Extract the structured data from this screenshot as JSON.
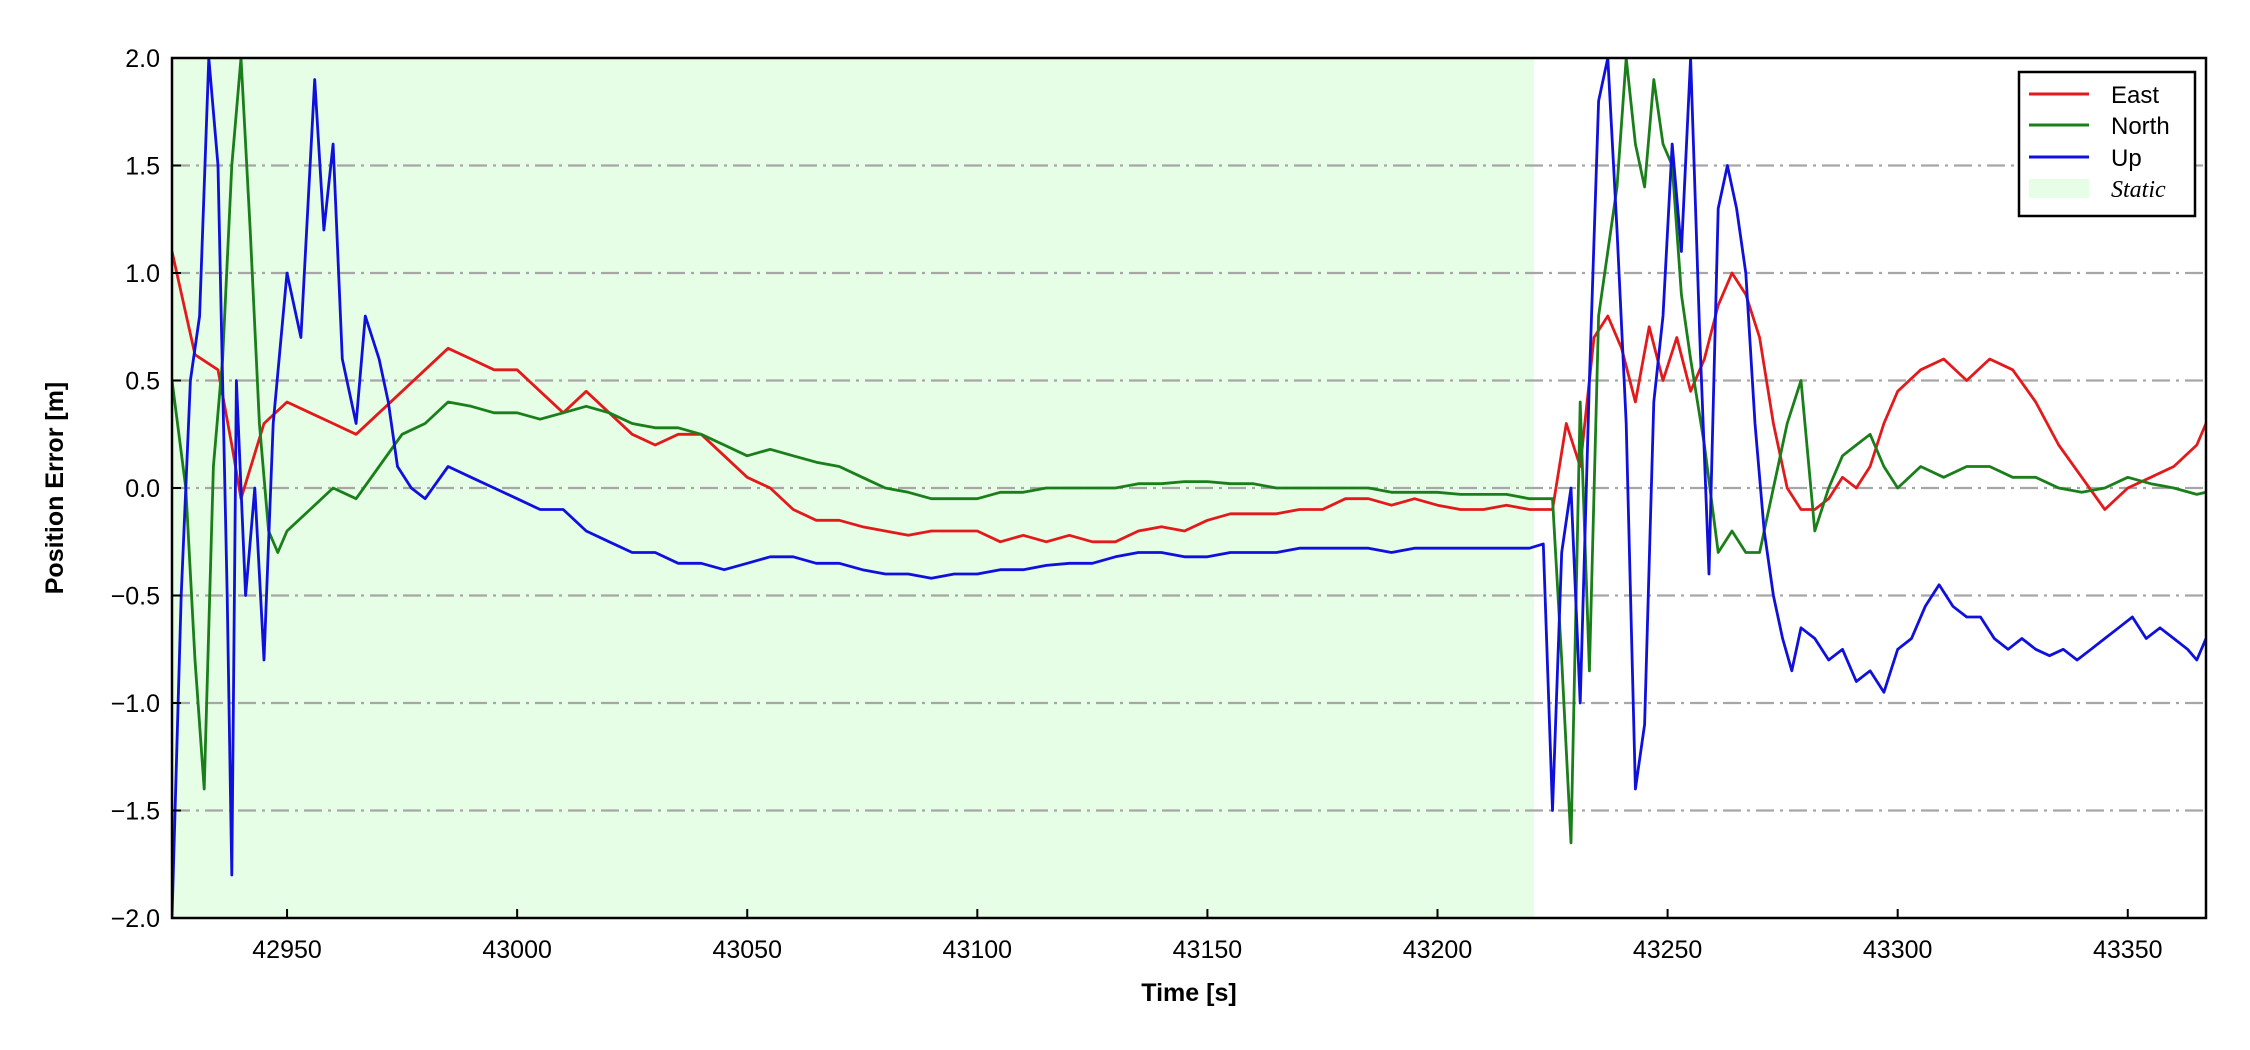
{
  "chart_data": {
    "type": "line",
    "xlabel": "Time [s]",
    "ylabel": "Position Error [m]",
    "xlim": [
      42925,
      43367
    ],
    "ylim": [
      -2.0,
      2.0
    ],
    "xticks": [
      42950,
      43000,
      43050,
      43100,
      43150,
      43200,
      43250,
      43300,
      43350
    ],
    "xtick_labels": [
      "42950",
      "43000",
      "43050",
      "43100",
      "43150",
      "43200",
      "43250",
      "43300",
      "43350"
    ],
    "yticks": [
      2.0,
      1.5,
      1.0,
      0.5,
      0.0,
      -0.5,
      -1.0,
      -1.5,
      -2.0
    ],
    "ytick_labels": [
      "2.0",
      "1.5",
      "1.0",
      "0.5",
      "0.0",
      "−0.5",
      "−1.0",
      "−1.5",
      "−2.0"
    ],
    "grid": "horizontal dash-dot",
    "legend_position": "top-right",
    "shaded_region": {
      "label": "Static",
      "x_start": 42925,
      "x_end": 43221,
      "color": "#e6fde6"
    },
    "series": [
      {
        "name": "East",
        "color": "#e31a1c",
        "x": [
          42925,
          42930,
          42935,
          42938,
          42940,
          42945,
          42950,
          42955,
          42960,
          42965,
          42970,
          42975,
          42980,
          42985,
          42990,
          42995,
          43000,
          43005,
          43010,
          43015,
          43020,
          43025,
          43030,
          43035,
          43040,
          43045,
          43050,
          43055,
          43060,
          43065,
          43070,
          43075,
          43080,
          43085,
          43090,
          43095,
          43100,
          43105,
          43110,
          43115,
          43120,
          43125,
          43130,
          43135,
          43140,
          43145,
          43150,
          43155,
          43160,
          43165,
          43170,
          43175,
          43180,
          43185,
          43190,
          43195,
          43200,
          43205,
          43210,
          43215,
          43220,
          43225,
          43228,
          43231,
          43234,
          43237,
          43240,
          43243,
          43246,
          43249,
          43252,
          43255,
          43258,
          43261,
          43264,
          43267,
          43270,
          43273,
          43276,
          43279,
          43282,
          43285,
          43288,
          43291,
          43294,
          43297,
          43300,
          43305,
          43310,
          43315,
          43320,
          43325,
          43330,
          43335,
          43340,
          43345,
          43350,
          43355,
          43360,
          43365,
          43367
        ],
        "y": [
          1.1,
          0.62,
          0.55,
          0.2,
          -0.05,
          0.3,
          0.4,
          0.35,
          0.3,
          0.25,
          0.35,
          0.45,
          0.55,
          0.65,
          0.6,
          0.55,
          0.55,
          0.45,
          0.35,
          0.45,
          0.35,
          0.25,
          0.2,
          0.25,
          0.25,
          0.15,
          0.05,
          0.0,
          -0.1,
          -0.15,
          -0.15,
          -0.18,
          -0.2,
          -0.22,
          -0.2,
          -0.2,
          -0.2,
          -0.25,
          -0.22,
          -0.25,
          -0.22,
          -0.25,
          -0.25,
          -0.2,
          -0.18,
          -0.2,
          -0.15,
          -0.12,
          -0.12,
          -0.12,
          -0.1,
          -0.1,
          -0.05,
          -0.05,
          -0.08,
          -0.05,
          -0.08,
          -0.1,
          -0.1,
          -0.08,
          -0.1,
          -0.1,
          0.3,
          0.1,
          0.7,
          0.8,
          0.65,
          0.4,
          0.75,
          0.5,
          0.7,
          0.45,
          0.6,
          0.85,
          1.0,
          0.9,
          0.7,
          0.3,
          0.0,
          -0.1,
          -0.1,
          -0.05,
          0.05,
          0.0,
          0.1,
          0.3,
          0.45,
          0.55,
          0.6,
          0.5,
          0.6,
          0.55,
          0.4,
          0.2,
          0.05,
          -0.1,
          0.0,
          0.05,
          0.1,
          0.2,
          0.3
        ]
      },
      {
        "name": "North",
        "color": "#1a7f1a",
        "x": [
          42925,
          42928,
          42930,
          42932,
          42934,
          42936,
          42938,
          42940,
          42942,
          42944,
          42946,
          42948,
          42950,
          42955,
          42960,
          42965,
          42970,
          42975,
          42980,
          42985,
          42990,
          42995,
          43000,
          43005,
          43010,
          43015,
          43020,
          43025,
          43030,
          43035,
          43040,
          43045,
          43050,
          43055,
          43060,
          43065,
          43070,
          43075,
          43080,
          43085,
          43090,
          43095,
          43100,
          43105,
          43110,
          43115,
          43120,
          43125,
          43130,
          43135,
          43140,
          43145,
          43150,
          43155,
          43160,
          43165,
          43170,
          43175,
          43180,
          43185,
          43190,
          43195,
          43200,
          43205,
          43210,
          43215,
          43220,
          43225,
          43227,
          43229,
          43231,
          43233,
          43235,
          43237,
          43239,
          43241,
          43243,
          43245,
          43247,
          43249,
          43251,
          43253,
          43255,
          43258,
          43261,
          43264,
          43267,
          43270,
          43273,
          43276,
          43279,
          43282,
          43285,
          43288,
          43291,
          43294,
          43297,
          43300,
          43305,
          43310,
          43315,
          43320,
          43325,
          43330,
          43335,
          43340,
          43345,
          43350,
          43355,
          43360,
          43365,
          43367
        ],
        "y": [
          0.5,
          0.0,
          -0.8,
          -1.4,
          0.1,
          0.6,
          1.5,
          2.0,
          1.2,
          0.3,
          -0.2,
          -0.3,
          -0.2,
          -0.1,
          0.0,
          -0.05,
          0.1,
          0.25,
          0.3,
          0.4,
          0.38,
          0.35,
          0.35,
          0.32,
          0.35,
          0.38,
          0.35,
          0.3,
          0.28,
          0.28,
          0.25,
          0.2,
          0.15,
          0.18,
          0.15,
          0.12,
          0.1,
          0.05,
          0.0,
          -0.02,
          -0.05,
          -0.05,
          -0.05,
          -0.02,
          -0.02,
          0.0,
          0.0,
          0.0,
          0.0,
          0.02,
          0.02,
          0.03,
          0.03,
          0.02,
          0.02,
          0.0,
          0.0,
          0.0,
          0.0,
          0.0,
          -0.02,
          -0.02,
          -0.02,
          -0.03,
          -0.03,
          -0.03,
          -0.05,
          -0.05,
          -0.8,
          -1.65,
          0.4,
          -0.85,
          0.8,
          1.1,
          1.4,
          2.0,
          1.6,
          1.4,
          1.9,
          1.6,
          1.5,
          0.9,
          0.6,
          0.2,
          -0.3,
          -0.2,
          -0.3,
          -0.3,
          0.0,
          0.3,
          0.5,
          -0.2,
          0.0,
          0.15,
          0.2,
          0.25,
          0.1,
          0.0,
          0.1,
          0.05,
          0.1,
          0.1,
          0.05,
          0.05,
          0.0,
          -0.02,
          0.0,
          0.05,
          0.02,
          0.0,
          -0.03,
          -0.02
        ]
      },
      {
        "name": "Up",
        "color": "#1010dd",
        "x": [
          42925,
          42927,
          42929,
          42931,
          42933,
          42935,
          42937,
          42938,
          42939,
          42941,
          42943,
          42945,
          42947,
          42950,
          42953,
          42956,
          42958,
          42960,
          42962,
          42965,
          42967,
          42970,
          42972,
          42974,
          42977,
          42980,
          42985,
          42990,
          42995,
          43000,
          43005,
          43010,
          43015,
          43020,
          43025,
          43030,
          43035,
          43040,
          43045,
          43050,
          43055,
          43060,
          43065,
          43070,
          43075,
          43080,
          43085,
          43090,
          43095,
          43100,
          43105,
          43110,
          43115,
          43120,
          43125,
          43130,
          43135,
          43140,
          43145,
          43150,
          43155,
          43160,
          43165,
          43170,
          43175,
          43180,
          43185,
          43190,
          43195,
          43200,
          43205,
          43210,
          43215,
          43220,
          43223,
          43225,
          43227,
          43229,
          43231,
          43233,
          43235,
          43237,
          43239,
          43241,
          43243,
          43245,
          43247,
          43249,
          43251,
          43253,
          43255,
          43257,
          43259,
          43261,
          43263,
          43265,
          43267,
          43269,
          43271,
          43273,
          43275,
          43277,
          43279,
          43282,
          43285,
          43288,
          43291,
          43294,
          43297,
          43300,
          43303,
          43306,
          43309,
          43312,
          43315,
          43318,
          43321,
          43324,
          43327,
          43330,
          43333,
          43336,
          43339,
          43342,
          43345,
          43348,
          43351,
          43354,
          43357,
          43360,
          43363,
          43365,
          43367
        ],
        "y": [
          -2.0,
          -0.5,
          0.5,
          0.8,
          2.0,
          1.5,
          -0.5,
          -1.8,
          0.5,
          -0.5,
          0.0,
          -0.8,
          0.3,
          1.0,
          0.7,
          1.9,
          1.2,
          1.6,
          0.6,
          0.3,
          0.8,
          0.6,
          0.4,
          0.1,
          0.0,
          -0.05,
          0.1,
          0.05,
          0.0,
          -0.05,
          -0.1,
          -0.1,
          -0.2,
          -0.25,
          -0.3,
          -0.3,
          -0.35,
          -0.35,
          -0.38,
          -0.35,
          -0.32,
          -0.32,
          -0.35,
          -0.35,
          -0.38,
          -0.4,
          -0.4,
          -0.42,
          -0.4,
          -0.4,
          -0.38,
          -0.38,
          -0.36,
          -0.35,
          -0.35,
          -0.32,
          -0.3,
          -0.3,
          -0.32,
          -0.32,
          -0.3,
          -0.3,
          -0.3,
          -0.28,
          -0.28,
          -0.28,
          -0.28,
          -0.3,
          -0.28,
          -0.28,
          -0.28,
          -0.28,
          -0.28,
          -0.28,
          -0.26,
          -1.5,
          -0.3,
          0.0,
          -1.0,
          0.5,
          1.8,
          2.0,
          1.2,
          0.3,
          -1.4,
          -1.1,
          0.4,
          0.8,
          1.6,
          1.1,
          2.0,
          0.7,
          -0.4,
          1.3,
          1.5,
          1.3,
          1.0,
          0.3,
          -0.2,
          -0.5,
          -0.7,
          -0.85,
          -0.65,
          -0.7,
          -0.8,
          -0.75,
          -0.9,
          -0.85,
          -0.95,
          -0.75,
          -0.7,
          -0.55,
          -0.45,
          -0.55,
          -0.6,
          -0.6,
          -0.7,
          -0.75,
          -0.7,
          -0.75,
          -0.78,
          -0.75,
          -0.8,
          -0.75,
          -0.7,
          -0.65,
          -0.6,
          -0.7,
          -0.65,
          -0.7,
          -0.75,
          -0.8,
          -0.7
        ]
      }
    ]
  }
}
